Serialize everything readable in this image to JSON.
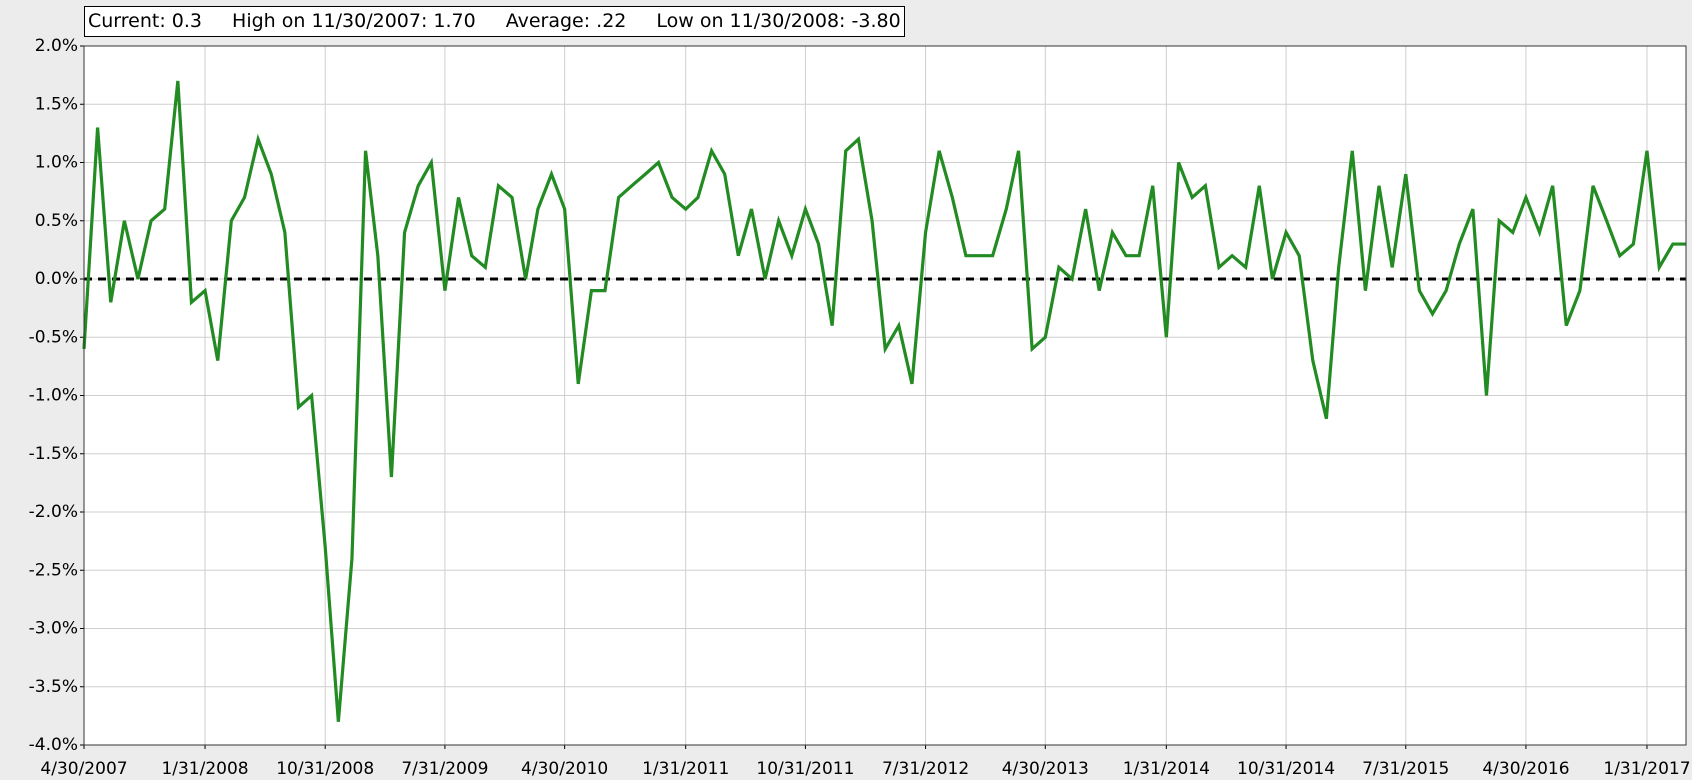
{
  "chart_data": {
    "type": "line",
    "stats": [
      "Current: 0.3",
      "High on 11/30/2007: 1.70",
      "Average: .22",
      "Low on 11/30/2008: -3.80"
    ],
    "x": [
      "4/30/2007",
      "5/31/2007",
      "6/30/2007",
      "7/31/2007",
      "8/31/2007",
      "9/30/2007",
      "10/31/2007",
      "11/30/2007",
      "12/31/2007",
      "1/31/2008",
      "2/29/2008",
      "3/31/2008",
      "4/30/2008",
      "5/31/2008",
      "6/30/2008",
      "7/31/2008",
      "8/31/2008",
      "9/30/2008",
      "10/31/2008",
      "11/30/2008",
      "12/31/2008",
      "1/31/2009",
      "2/28/2009",
      "3/31/2009",
      "4/30/2009",
      "5/31/2009",
      "6/30/2009",
      "7/31/2009",
      "8/31/2009",
      "9/30/2009",
      "10/31/2009",
      "11/30/2009",
      "12/31/2009",
      "1/31/2010",
      "2/28/2010",
      "3/31/2010",
      "4/30/2010",
      "5/31/2010",
      "6/30/2010",
      "7/31/2010",
      "8/31/2010",
      "9/30/2010",
      "10/31/2010",
      "11/30/2010",
      "12/31/2010",
      "1/31/2011",
      "2/28/2011",
      "3/31/2011",
      "4/30/2011",
      "5/31/2011",
      "6/30/2011",
      "7/31/2011",
      "8/31/2011",
      "9/30/2011",
      "10/31/2011",
      "11/30/2011",
      "12/31/2011",
      "1/31/2012",
      "2/29/2012",
      "3/31/2012",
      "4/30/2012",
      "5/31/2012",
      "6/30/2012",
      "7/31/2012",
      "8/31/2012",
      "9/30/2012",
      "10/31/2012",
      "11/30/2012",
      "12/31/2012",
      "1/31/2013",
      "2/28/2013",
      "3/31/2013",
      "4/30/2013",
      "5/31/2013",
      "6/30/2013",
      "7/31/2013",
      "8/31/2013",
      "9/30/2013",
      "10/31/2013",
      "11/30/2013",
      "12/31/2013",
      "1/31/2014",
      "2/28/2014",
      "3/31/2014",
      "4/30/2014",
      "5/31/2014",
      "6/30/2014",
      "7/31/2014",
      "8/31/2014",
      "9/30/2014",
      "10/31/2014",
      "11/30/2014",
      "12/31/2014",
      "1/31/2015",
      "2/28/2015",
      "3/31/2015",
      "4/30/2015",
      "5/31/2015",
      "6/30/2015",
      "7/31/2015",
      "8/31/2015",
      "9/30/2015",
      "10/31/2015",
      "11/30/2015",
      "12/31/2015",
      "1/31/2016",
      "2/29/2016",
      "3/31/2016",
      "4/30/2016",
      "5/31/2016",
      "6/30/2016",
      "7/31/2016",
      "8/31/2016",
      "9/30/2016",
      "10/31/2016",
      "11/30/2016",
      "12/31/2016",
      "1/31/2017",
      "2/28/2017",
      "3/31/2017",
      "4/30/2017"
    ],
    "values": [
      -0.6,
      1.3,
      -0.2,
      0.5,
      0.0,
      0.5,
      0.6,
      1.7,
      -0.2,
      -0.1,
      -0.7,
      0.5,
      0.7,
      1.2,
      0.9,
      0.4,
      -1.1,
      -1.0,
      -2.3,
      -3.8,
      -2.4,
      1.1,
      0.2,
      -1.7,
      0.4,
      0.8,
      1.0,
      -0.1,
      0.7,
      0.2,
      0.1,
      0.8,
      0.7,
      0.0,
      0.6,
      0.9,
      0.6,
      -0.9,
      -0.1,
      -0.1,
      0.7,
      0.8,
      0.9,
      1.0,
      0.7,
      0.6,
      0.7,
      1.1,
      0.9,
      0.2,
      0.6,
      0.0,
      0.5,
      0.2,
      0.6,
      0.3,
      -0.4,
      1.1,
      1.2,
      0.5,
      -0.6,
      -0.4,
      -0.9,
      0.4,
      1.1,
      0.7,
      0.2,
      0.2,
      0.2,
      0.6,
      1.1,
      -0.6,
      -0.5,
      0.1,
      0.0,
      0.6,
      -0.1,
      0.4,
      0.2,
      0.2,
      0.8,
      -0.5,
      1.0,
      0.7,
      0.8,
      0.1,
      0.2,
      0.1,
      0.8,
      0.0,
      0.4,
      0.2,
      -0.7,
      -1.2,
      0.1,
      1.1,
      -0.1,
      0.8,
      0.1,
      0.9,
      -0.1,
      -0.3,
      -0.1,
      0.3,
      0.6,
      -1.0,
      0.5,
      0.4,
      0.7,
      0.4,
      0.8,
      -0.4,
      -0.1,
      0.8,
      0.5,
      0.2,
      0.3,
      1.1,
      0.1,
      0.3,
      0.3
    ],
    "color": "#228b22",
    "xlim": [
      "4/30/2007",
      "4/30/2017"
    ],
    "xticks": [
      "4/30/2007",
      "1/31/2008",
      "10/31/2008",
      "7/31/2009",
      "4/30/2010",
      "1/31/2011",
      "10/31/2011",
      "7/31/2012",
      "4/30/2013",
      "1/31/2014",
      "10/31/2014",
      "7/31/2015",
      "4/30/2016",
      "1/31/2017"
    ],
    "ylim": [
      -4,
      2
    ],
    "yticks": [
      {
        "value": 2,
        "label": "2.0%"
      },
      {
        "value": 1.5,
        "label": "1.5%"
      },
      {
        "value": 1,
        "label": "1.0%"
      },
      {
        "value": 0.5,
        "label": "0.5%"
      },
      {
        "value": 0,
        "label": "0.0%"
      },
      {
        "value": -0.5,
        "label": "-0.5%"
      },
      {
        "value": -1,
        "label": "-1.0%"
      },
      {
        "value": -1.5,
        "label": "-1.5%"
      },
      {
        "value": -2,
        "label": "-2.0%"
      },
      {
        "value": -2.5,
        "label": "-2.5%"
      },
      {
        "value": -3,
        "label": "-3.0%"
      },
      {
        "value": -3.5,
        "label": "-3.5%"
      },
      {
        "value": -4,
        "label": "-4.0%"
      }
    ],
    "grid": true,
    "hline": 0
  }
}
